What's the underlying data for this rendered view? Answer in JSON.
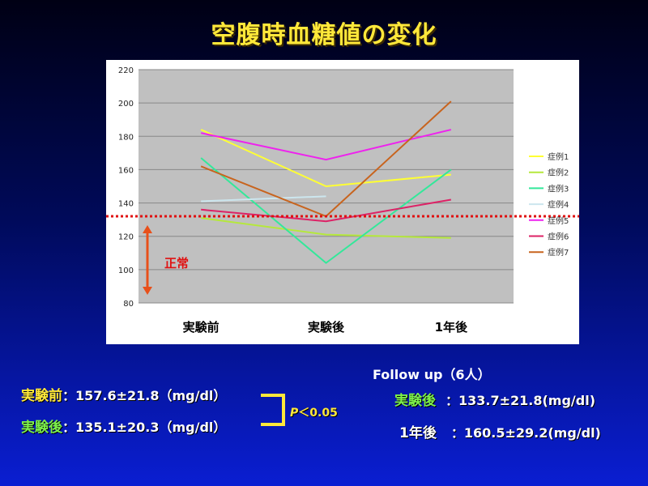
{
  "slide": {
    "title": "空腹時血糖値の変化"
  },
  "chart_data": {
    "type": "line",
    "categories": [
      "実験前",
      "実験後",
      "1年後"
    ],
    "ylim": [
      80,
      220
    ],
    "yticks": [
      80,
      100,
      120,
      140,
      160,
      180,
      200,
      220
    ],
    "grid": true,
    "legend_position": "right",
    "series": [
      {
        "name": "症例1",
        "color": "#ffff33",
        "values": [
          184,
          150,
          157
        ]
      },
      {
        "name": "症例2",
        "color": "#b5e83c",
        "values": [
          131,
          121,
          119
        ]
      },
      {
        "name": "症例3",
        "color": "#33e89a",
        "values": [
          167,
          104,
          160
        ]
      },
      {
        "name": "症例4",
        "color": "#cce6ee",
        "values": [
          141,
          144,
          null
        ]
      },
      {
        "name": "症例5",
        "color": "#ee22ee",
        "values": [
          182,
          166,
          184
        ]
      },
      {
        "name": "症例6",
        "color": "#dd2266",
        "values": [
          136,
          129,
          142
        ]
      },
      {
        "name": "症例7",
        "color": "#c8641e",
        "values": [
          162,
          132,
          201
        ]
      }
    ],
    "reference_line": {
      "value": 132,
      "color": "#e01010"
    },
    "normal_label": "正常"
  },
  "stats": {
    "before": {
      "label": "実験前",
      "value": "：157.6±21.8（mg/dl）"
    },
    "after": {
      "label": "実験後",
      "value": "：135.1±20.3（mg/dl）"
    },
    "p_symbol": "P",
    "p_rest": "＜0.05"
  },
  "followup": {
    "title": "Follow up（6人）",
    "after": {
      "label": "実験後",
      "value": "：133.7±21.8(mg/dl)"
    },
    "year": {
      "label": "1年後",
      "value": "：160.5±29.2(mg/dl)"
    }
  }
}
